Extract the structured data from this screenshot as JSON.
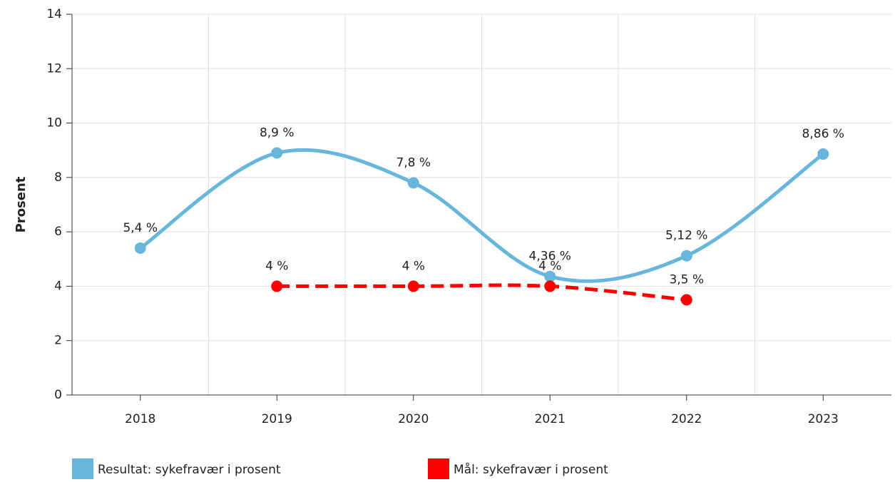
{
  "chart_data": {
    "type": "line",
    "y_label": "Prosent",
    "categories": [
      "2018",
      "2019",
      "2020",
      "2021",
      "2022",
      "2023"
    ],
    "series": [
      {
        "name": "Resultat: sykefravær i prosent",
        "color": "#67b6dc",
        "style": "solid",
        "values": [
          5.4,
          8.9,
          7.8,
          4.36,
          5.12,
          8.86
        ],
        "value_labels": [
          "5,4 %",
          "8,9 %",
          "7,8 %",
          "4,36 %",
          "5,12 %",
          "8,86 %"
        ]
      },
      {
        "name": "Mål: sykefravær i prosent",
        "color": "#ff0000",
        "style": "dashed",
        "values": [
          null,
          4,
          4,
          4,
          3.5,
          null
        ],
        "value_labels": [
          null,
          "4 %",
          "4 %",
          "4 %",
          "3,5 %",
          null
        ]
      }
    ],
    "ylim": [
      0,
      14
    ],
    "yticks": [
      0,
      2,
      4,
      6,
      8,
      10,
      12,
      14
    ],
    "grid": true,
    "legend": "bottom"
  }
}
